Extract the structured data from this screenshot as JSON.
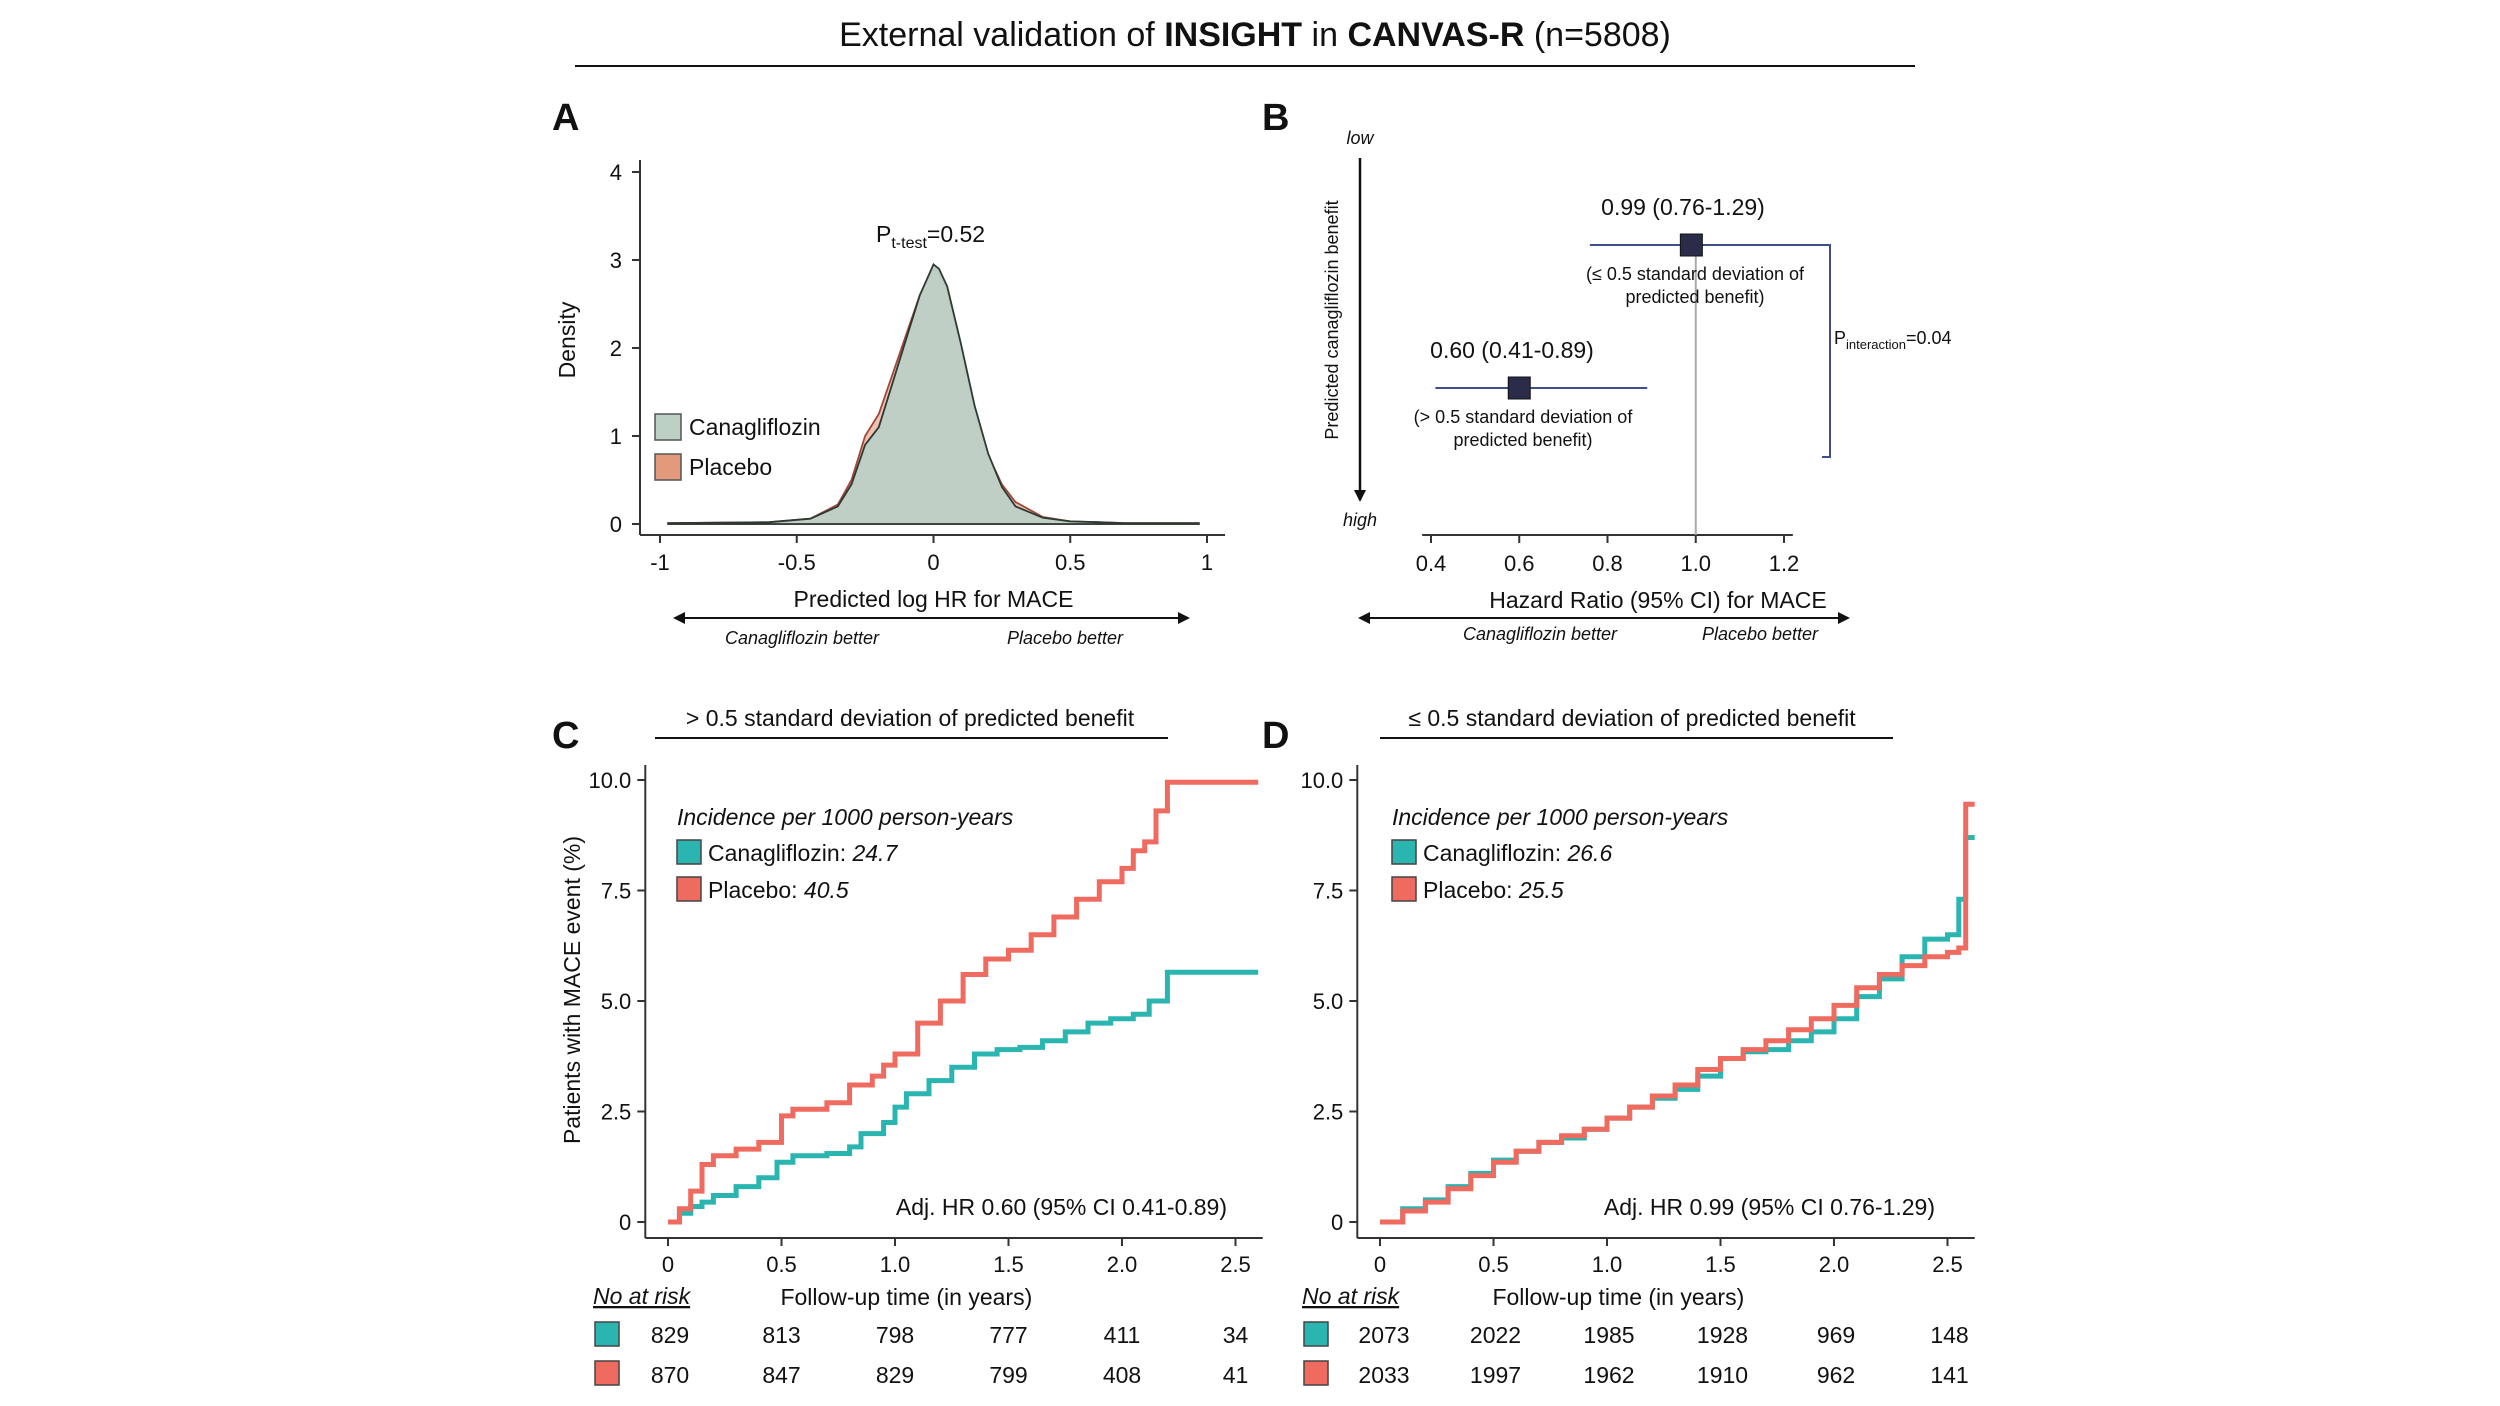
{
  "figure": {
    "title_prefix": "External validation of ",
    "title_insight": "INSIGHT",
    "title_in": " in ",
    "title_canvas": "CANVAS-R",
    "title_suffix": " (n=5808)"
  },
  "colors": {
    "canagliflozin_fill": "#bcd0c6",
    "placebo_fill": "#e39a7c",
    "canagliflozin_line": "#2ab5b0",
    "placebo_line": "#ef6a5f",
    "forest_line": "#3e4f8c",
    "forest_box": "#2a2c4a",
    "axis": "#333333"
  },
  "panels": {
    "a": {
      "letter": "A",
      "p_main": "P",
      "p_sub": "t-test",
      "p_val": "=0.52",
      "legend": [
        "Canagliflozin",
        "Placebo"
      ],
      "arrow_left": "Canagliflozin better",
      "arrow_right": "Placebo better"
    },
    "b": {
      "letter": "B",
      "yaxis_label": "Predicted canagliflozin benefit",
      "low": "low",
      "high": "high",
      "p_main": "P",
      "p_sub": "interaction",
      "p_val": "=0.04",
      "arrow_left": "Canagliflozin better",
      "arrow_right": "Placebo better"
    },
    "c": {
      "letter": "C",
      "header": "> 0.5 standard deviation of predicted benefit",
      "inc_title": "Incidence per 1000 person-years",
      "inc_cana_label": "Canagliflozin: ",
      "inc_cana_val": "24.7",
      "inc_plac_label": "Placebo: ",
      "inc_plac_val": "40.5",
      "hr_text": "Adj. HR 0.60 (95% CI 0.41-0.89)",
      "at_risk_title": "No at risk",
      "at_risk_cana": [
        "829",
        "813",
        "798",
        "777",
        "411",
        "34"
      ],
      "at_risk_plac": [
        "870",
        "847",
        "829",
        "799",
        "408",
        "41"
      ]
    },
    "d": {
      "letter": "D",
      "header": "≤ 0.5 standard deviation of predicted benefit",
      "inc_title": "Incidence per 1000 person-years",
      "inc_cana_label": "Canagliflozin: ",
      "inc_cana_val": "26.6",
      "inc_plac_label": "Placebo: ",
      "inc_plac_val": "25.5",
      "hr_text": "Adj. HR 0.99 (95% CI 0.76-1.29)",
      "at_risk_title": "No at risk",
      "at_risk_cana": [
        "2073",
        "2022",
        "1985",
        "1928",
        "969",
        "148"
      ],
      "at_risk_plac": [
        "2033",
        "1997",
        "1962",
        "1910",
        "962",
        "141"
      ]
    }
  },
  "chart_data": [
    {
      "type": "area",
      "panel": "A",
      "xlabel": "Predicted log HR for MACE",
      "ylabel": "Density",
      "xlim": [
        -1,
        1
      ],
      "ylim": [
        0,
        4
      ],
      "xticks": [
        "-1",
        "-0.5",
        "0",
        "0.5",
        "1"
      ],
      "yticks": [
        "0",
        "1",
        "2",
        "3",
        "4"
      ],
      "legend_position": "left",
      "series": [
        {
          "name": "Canagliflozin",
          "x": [
            -0.97,
            -0.6,
            -0.45,
            -0.35,
            -0.3,
            -0.25,
            -0.2,
            -0.15,
            -0.1,
            -0.05,
            0,
            0.02,
            0.05,
            0.1,
            0.15,
            0.2,
            0.25,
            0.3,
            0.4,
            0.5,
            0.6,
            0.7,
            0.8,
            0.97
          ],
          "y": [
            0.01,
            0.02,
            0.06,
            0.2,
            0.45,
            0.9,
            1.1,
            1.6,
            2.1,
            2.6,
            2.95,
            2.9,
            2.7,
            2.05,
            1.35,
            0.8,
            0.42,
            0.2,
            0.07,
            0.03,
            0.02,
            0.01,
            0.01,
            0.01
          ]
        },
        {
          "name": "Placebo",
          "x": [
            -0.97,
            -0.6,
            -0.45,
            -0.35,
            -0.3,
            -0.25,
            -0.2,
            -0.15,
            -0.1,
            -0.05,
            0,
            0.02,
            0.05,
            0.1,
            0.15,
            0.2,
            0.25,
            0.3,
            0.4,
            0.5,
            0.6,
            0.7,
            0.8,
            0.97
          ],
          "y": [
            0.01,
            0.02,
            0.06,
            0.22,
            0.5,
            1.0,
            1.25,
            1.7,
            2.15,
            2.6,
            2.9,
            2.85,
            2.65,
            2.0,
            1.3,
            0.78,
            0.45,
            0.25,
            0.08,
            0.03,
            0.02,
            0.01,
            0.01,
            0.01
          ]
        }
      ]
    },
    {
      "type": "scatter",
      "subtype": "forest",
      "panel": "B",
      "xlabel": "Hazard Ratio (95% CI) for MACE",
      "xlim": [
        0.38,
        1.25
      ],
      "xticks": [
        "0.4",
        "0.6",
        "0.8",
        "1.0",
        "1.2"
      ],
      "reference_line": 1.0,
      "rows": [
        {
          "label": "0.99 (0.76-1.29)",
          "sublabel_1": "(≤ 0.5 standard deviation of",
          "sublabel_2": "predicted benefit)",
          "hr": 0.99,
          "lo": 0.76,
          "hi": 1.29
        },
        {
          "label": "0.60 (0.41-0.89)",
          "sublabel_1": "(> 0.5 standard deviation of",
          "sublabel_2": "predicted benefit)",
          "hr": 0.6,
          "lo": 0.41,
          "hi": 0.89
        }
      ]
    },
    {
      "type": "line",
      "subtype": "kaplan-meier",
      "panel": "C",
      "xlabel": "Follow-up time (in years)",
      "ylabel": "Patients with MACE event (%)",
      "xlim": [
        -0.1,
        2.62
      ],
      "ylim": [
        0,
        10
      ],
      "xticks": [
        "0",
        "0.5",
        "1.0",
        "1.5",
        "2.0",
        "2.5"
      ],
      "yticks": [
        "0",
        "2.5",
        "5.0",
        "7.5",
        "10.0"
      ],
      "series": [
        {
          "name": "Canagliflozin",
          "x": [
            0,
            0.05,
            0.1,
            0.15,
            0.2,
            0.3,
            0.4,
            0.48,
            0.55,
            0.7,
            0.8,
            0.85,
            0.95,
            1.0,
            1.05,
            1.15,
            1.25,
            1.35,
            1.45,
            1.55,
            1.65,
            1.75,
            1.85,
            1.95,
            2.05,
            2.12,
            2.2,
            2.4,
            2.6
          ],
          "y": [
            0,
            0.2,
            0.35,
            0.45,
            0.6,
            0.8,
            1.0,
            1.35,
            1.5,
            1.55,
            1.7,
            2.0,
            2.25,
            2.6,
            2.9,
            3.2,
            3.5,
            3.8,
            3.9,
            3.95,
            4.1,
            4.3,
            4.5,
            4.6,
            4.7,
            5.0,
            5.65,
            5.65,
            5.65
          ]
        },
        {
          "name": "Placebo",
          "x": [
            0,
            0.05,
            0.1,
            0.15,
            0.2,
            0.3,
            0.4,
            0.5,
            0.55,
            0.7,
            0.8,
            0.9,
            0.95,
            1.0,
            1.1,
            1.2,
            1.3,
            1.4,
            1.5,
            1.6,
            1.7,
            1.8,
            1.9,
            2.0,
            2.05,
            2.1,
            2.15,
            2.2,
            2.4,
            2.6
          ],
          "y": [
            0,
            0.3,
            0.7,
            1.3,
            1.5,
            1.65,
            1.8,
            2.4,
            2.55,
            2.7,
            3.1,
            3.3,
            3.55,
            3.8,
            4.5,
            5.0,
            5.6,
            5.95,
            6.15,
            6.5,
            6.9,
            7.3,
            7.7,
            8.0,
            8.4,
            8.6,
            9.3,
            9.95,
            9.95,
            9.95
          ]
        }
      ]
    },
    {
      "type": "line",
      "subtype": "kaplan-meier",
      "panel": "D",
      "xlabel": "Follow-up time (in years)",
      "ylabel": "",
      "xlim": [
        -0.1,
        2.62
      ],
      "ylim": [
        0,
        10
      ],
      "xticks": [
        "0",
        "0.5",
        "1.0",
        "1.5",
        "2.0",
        "2.5"
      ],
      "yticks": [
        "0",
        "2.5",
        "5.0",
        "7.5",
        "10.0"
      ],
      "series": [
        {
          "name": "Canagliflozin",
          "x": [
            0,
            0.1,
            0.2,
            0.3,
            0.4,
            0.5,
            0.6,
            0.7,
            0.8,
            0.9,
            1.0,
            1.1,
            1.2,
            1.3,
            1.4,
            1.5,
            1.6,
            1.7,
            1.8,
            1.9,
            2.0,
            2.1,
            2.2,
            2.3,
            2.4,
            2.5,
            2.55,
            2.58,
            2.62
          ],
          "y": [
            0,
            0.3,
            0.5,
            0.8,
            1.1,
            1.4,
            1.6,
            1.8,
            1.9,
            2.1,
            2.35,
            2.6,
            2.8,
            3.0,
            3.3,
            3.7,
            3.85,
            3.9,
            4.1,
            4.3,
            4.6,
            5.1,
            5.5,
            6.0,
            6.4,
            6.5,
            7.3,
            8.7,
            8.7
          ]
        },
        {
          "name": "Placebo",
          "x": [
            0,
            0.1,
            0.2,
            0.3,
            0.4,
            0.5,
            0.6,
            0.7,
            0.8,
            0.9,
            1.0,
            1.1,
            1.2,
            1.3,
            1.4,
            1.5,
            1.6,
            1.7,
            1.8,
            1.9,
            2.0,
            2.1,
            2.2,
            2.3,
            2.4,
            2.5,
            2.55,
            2.58,
            2.62
          ],
          "y": [
            0,
            0.25,
            0.45,
            0.75,
            1.05,
            1.35,
            1.6,
            1.8,
            1.95,
            2.1,
            2.35,
            2.6,
            2.85,
            3.1,
            3.45,
            3.7,
            3.9,
            4.1,
            4.35,
            4.6,
            4.9,
            5.3,
            5.6,
            5.8,
            6.0,
            6.1,
            6.2,
            9.45,
            9.45
          ]
        }
      ]
    }
  ]
}
